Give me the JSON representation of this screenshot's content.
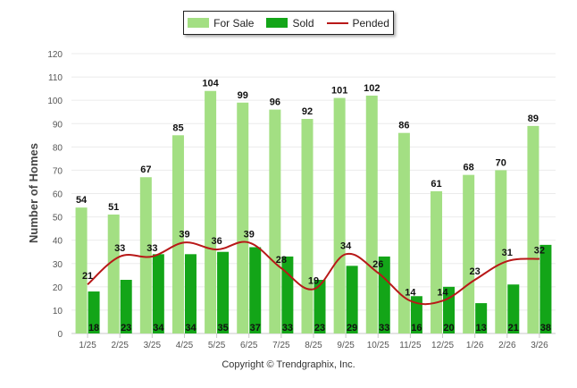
{
  "colors": {
    "for_sale": "#a3df83",
    "sold": "#13a518",
    "pended": "#b81818",
    "grid": "#ebebeb",
    "axis_text": "#555555"
  },
  "legend": {
    "for_sale_label": "For Sale",
    "sold_label": "Sold",
    "pended_label": "Pended"
  },
  "copyright": "Copyright © Trendgraphix, Inc.",
  "chart_data": {
    "type": "bar",
    "title": "",
    "xlabel": "",
    "ylabel": "Number of Homes",
    "ylim": [
      0,
      120
    ],
    "yticks": [
      0,
      10,
      20,
      30,
      40,
      50,
      60,
      70,
      80,
      90,
      100,
      110,
      120
    ],
    "grid": true,
    "legend_position": "top-center",
    "categories": [
      "1/25",
      "2/25",
      "3/25",
      "4/25",
      "5/25",
      "6/25",
      "7/25",
      "8/25",
      "9/25",
      "10/25",
      "11/25",
      "12/25",
      "1/26",
      "2/26",
      "3/26"
    ],
    "series": [
      {
        "name": "For Sale",
        "type": "bar",
        "values": [
          54,
          51,
          67,
          85,
          104,
          99,
          96,
          92,
          101,
          102,
          86,
          61,
          68,
          70,
          89
        ]
      },
      {
        "name": "Sold",
        "type": "bar",
        "values": [
          18,
          23,
          34,
          34,
          35,
          37,
          33,
          23,
          29,
          33,
          16,
          20,
          13,
          21,
          38
        ]
      },
      {
        "name": "Pended",
        "type": "line",
        "values": [
          21,
          33,
          33,
          39,
          36,
          39,
          28,
          19,
          34,
          26,
          14,
          14,
          23,
          31,
          32
        ]
      }
    ]
  }
}
